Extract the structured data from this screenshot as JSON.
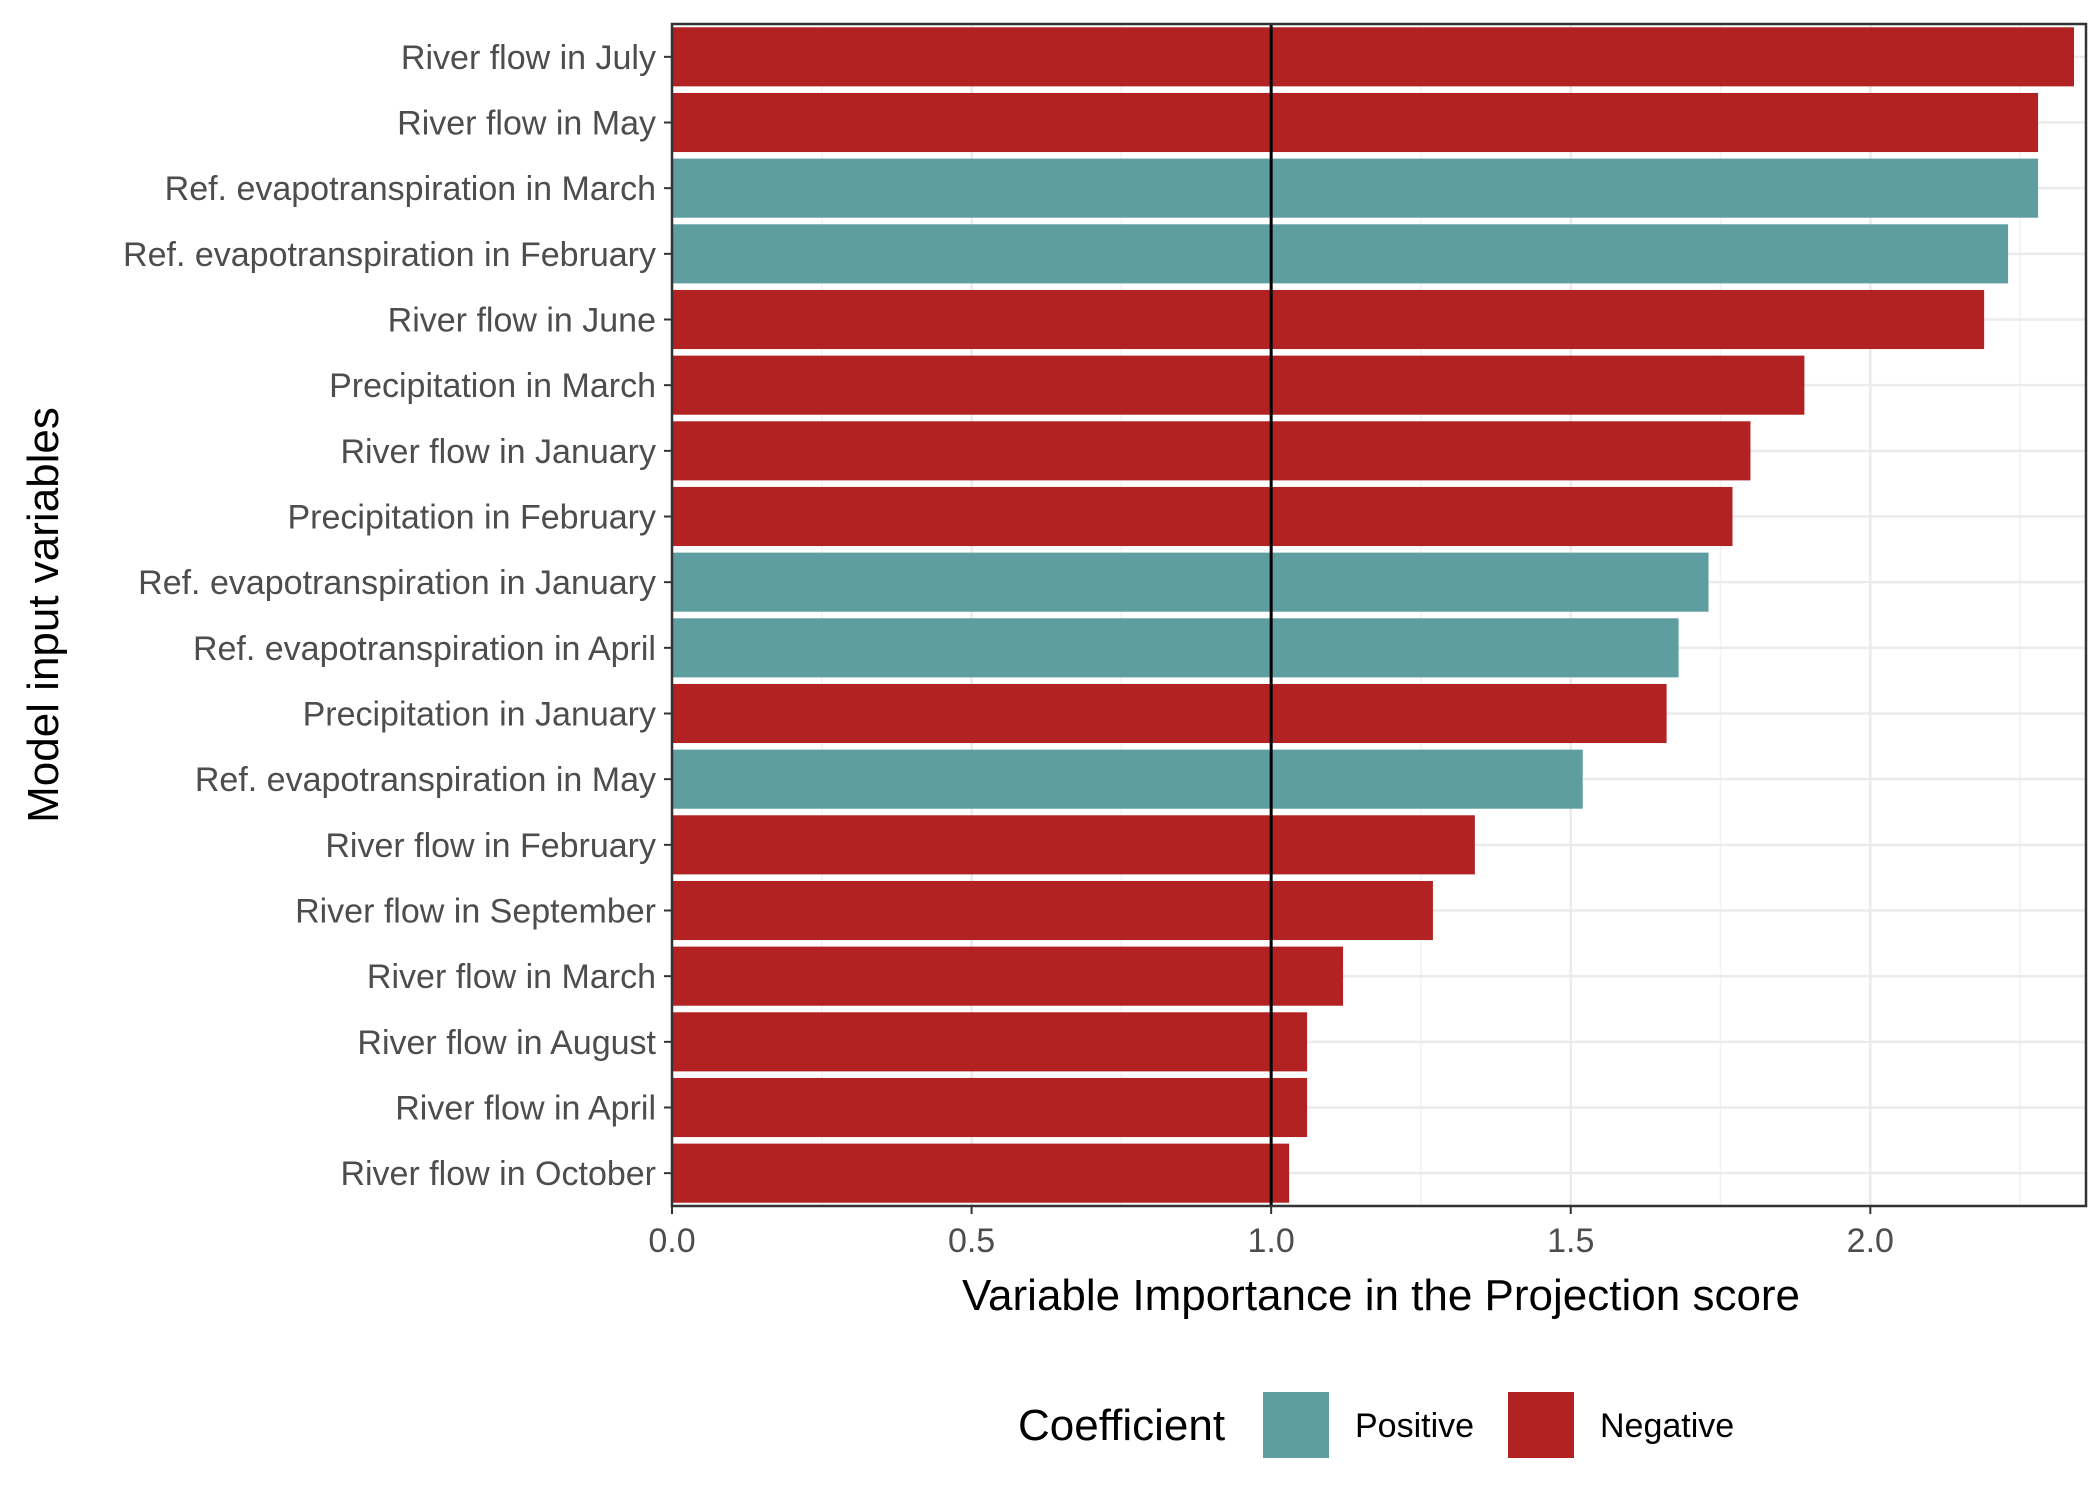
{
  "chart_data": {
    "type": "bar",
    "orientation": "horizontal",
    "xlabel": "Variable Importance in the Projection score",
    "ylabel": "Model input variables",
    "xlim": [
      0,
      2.36
    ],
    "xticks": [
      0.0,
      0.5,
      1.0,
      1.5,
      2.0
    ],
    "xtick_labels": [
      "0.0",
      "0.5",
      "1.0",
      "1.5",
      "2.0"
    ],
    "reference_line_x": 1.0,
    "grid": true,
    "categories": [
      "River flow in July",
      "River flow in May",
      "Ref. evapotranspiration in March",
      "Ref. evapotranspiration in February",
      "River flow in June",
      "Precipitation in March",
      "River flow in January",
      "Precipitation in February",
      "Ref. evapotranspiration in January",
      "Ref. evapotranspiration in April",
      "Precipitation in January",
      "Ref. evapotranspiration in May",
      "River flow in February",
      "River flow in September",
      "River flow in March",
      "River flow in August",
      "River flow in April",
      "River flow in October"
    ],
    "values": [
      2.34,
      2.28,
      2.28,
      2.23,
      2.19,
      1.89,
      1.8,
      1.77,
      1.73,
      1.68,
      1.66,
      1.52,
      1.34,
      1.27,
      1.12,
      1.06,
      1.06,
      1.03
    ],
    "coefficient": [
      "Negative",
      "Negative",
      "Positive",
      "Positive",
      "Negative",
      "Negative",
      "Negative",
      "Negative",
      "Positive",
      "Positive",
      "Negative",
      "Positive",
      "Negative",
      "Negative",
      "Negative",
      "Negative",
      "Negative",
      "Negative"
    ],
    "legend": {
      "title": "Coefficient",
      "position": "bottom",
      "entries": [
        {
          "label": "Positive",
          "color": "#5f9ea0"
        },
        {
          "label": "Negative",
          "color": "#b22222"
        }
      ]
    },
    "colors": {
      "Positive": "#5f9ea0",
      "Negative": "#b22222"
    }
  }
}
